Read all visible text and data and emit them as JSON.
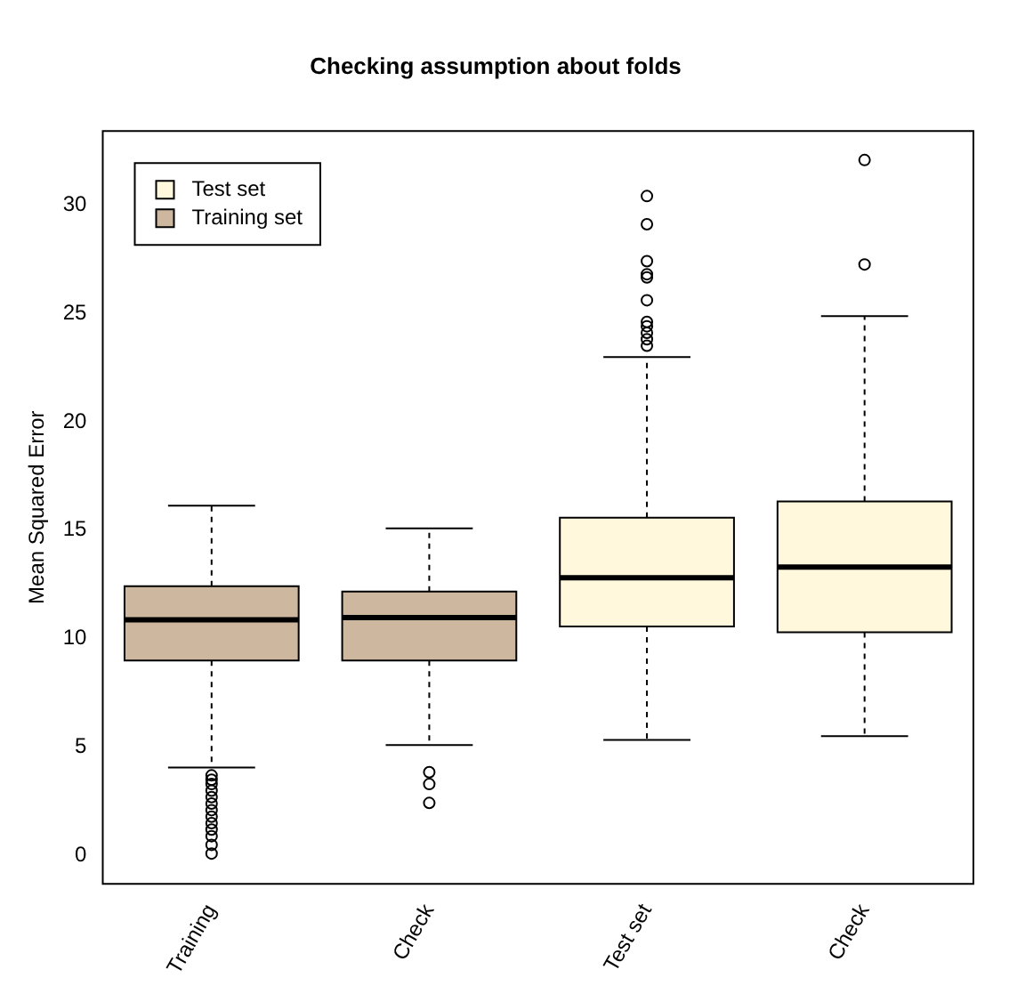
{
  "chart_data": {
    "type": "box",
    "title": "Checking assumption about folds",
    "ylabel": "Mean Squared Error",
    "categories": [
      "Training",
      "Check",
      "Test set",
      "Check"
    ],
    "ylim": [
      -1.3,
      33.4
    ],
    "yticks": [
      0,
      5,
      10,
      15,
      20,
      25,
      30
    ],
    "grid": false,
    "legend": "top left",
    "marker": "circle",
    "series": [
      {
        "name": "Test set",
        "color": "#fff8dc",
        "boxes": [
          null,
          null,
          {
            "low": 5.33,
            "q1": 10.56,
            "median": 12.81,
            "q3": 15.58,
            "high": 22.98,
            "outliers": [
              30.4,
              29.1,
              27.4,
              26.8,
              26.65,
              25.6,
              24.6,
              24.4,
              24.1,
              23.8,
              23.5
            ]
          },
          {
            "low": 5.51,
            "q1": 10.3,
            "median": 13.3,
            "q3": 16.33,
            "high": 24.87,
            "outliers": [
              32.06,
              27.25
            ]
          }
        ]
      },
      {
        "name": "Training set",
        "color": "#cdb79e",
        "boxes": [
          {
            "low": 4.06,
            "q1": 9.0,
            "median": 10.87,
            "q3": 12.42,
            "high": 16.13,
            "outliers": [
              3.7,
              3.5,
              3.3,
              3.0,
              2.7,
              2.4,
              2.1,
              1.8,
              1.5,
              1.2,
              0.9,
              0.5,
              0.1
            ]
          },
          {
            "low": 5.1,
            "q1": 9.0,
            "median": 10.97,
            "q3": 12.17,
            "high": 15.09,
            "outliers": [
              3.85,
              3.3,
              2.43
            ]
          },
          null,
          null
        ]
      }
    ]
  }
}
